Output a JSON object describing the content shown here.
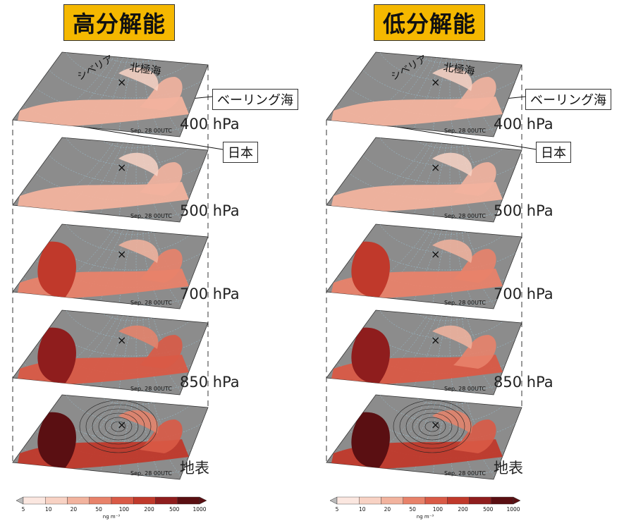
{
  "titles": {
    "high": "高分解能",
    "low": "低分解能"
  },
  "levels": [
    "400 hPa",
    "500 hPa",
    "700 hPa",
    "850 hPa",
    "地表"
  ],
  "annotations": {
    "arctic": "北極海",
    "siberia": "シベリア",
    "bering": "ベーリング海",
    "japan": "日本",
    "date": "Sep. 28 00UTC",
    "marker": "×"
  },
  "colorbar": {
    "ticks": [
      "5",
      "10",
      "20",
      "50",
      "100",
      "200",
      "500",
      "1000"
    ],
    "unit": "ng m⁻³",
    "colors": [
      "#fbe7e0",
      "#f8d2c4",
      "#f2b39e",
      "#e8826a",
      "#d95a46",
      "#c0392b",
      "#8f1d1d",
      "#5a0f12"
    ]
  },
  "chart_data": {
    "type": "heatmap",
    "description_note": "",
    "panels": [
      {
        "column": "高分解能",
        "levels": [
          "400 hPa",
          "500 hPa",
          "700 hPa",
          "850 hPa",
          "地表"
        ]
      },
      {
        "column": "低分解能",
        "levels": [
          "400 hPa",
          "500 hPa",
          "700 hPa",
          "850 hPa",
          "地表"
        ]
      }
    ],
    "colorbar_bounds": [
      5,
      10,
      20,
      50,
      100,
      200,
      500,
      1000
    ],
    "unit": "ng m⁻³"
  }
}
